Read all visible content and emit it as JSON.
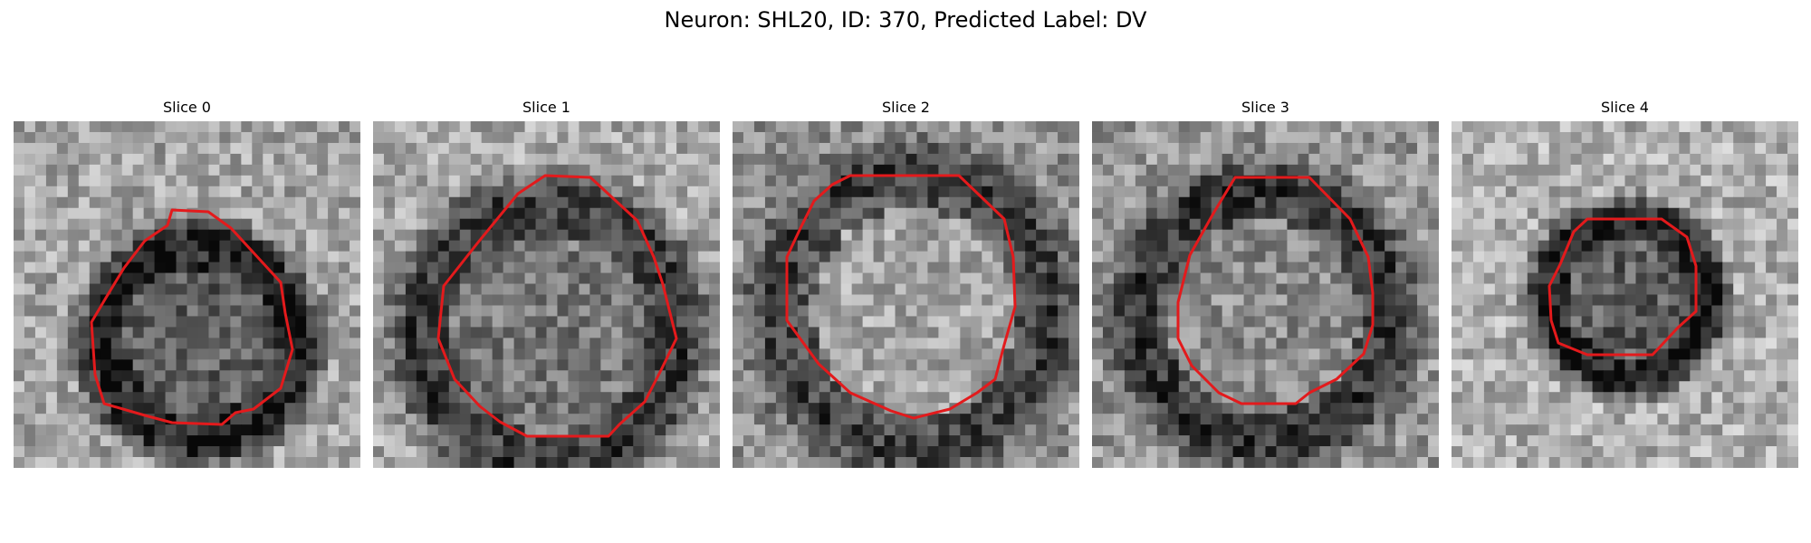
{
  "title": "Neuron: SHL20, ID: 370, Predicted Label: DV",
  "contour_color": "#e31a1c",
  "colormap": "grayscale",
  "panels": [
    {
      "title": "Slice 0"
    },
    {
      "title": "Slice 1"
    },
    {
      "title": "Slice 2"
    },
    {
      "title": "Slice 3"
    },
    {
      "title": "Slice 4"
    }
  ]
}
